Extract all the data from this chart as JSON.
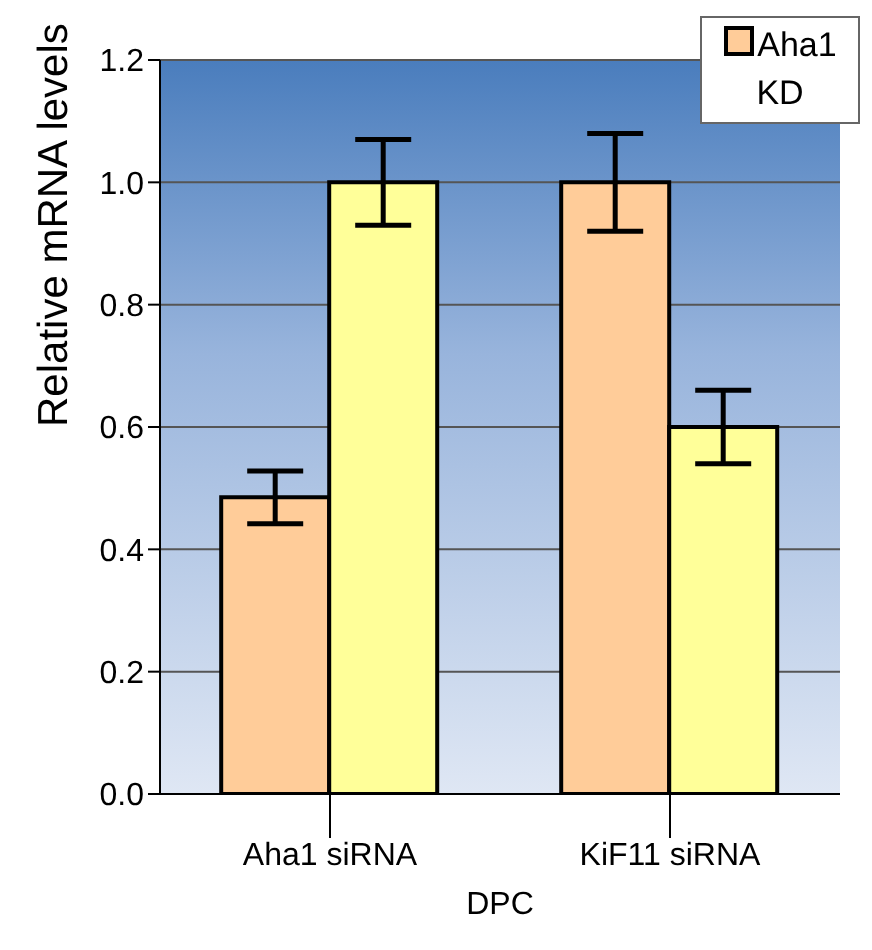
{
  "chart_data": {
    "type": "bar",
    "ylabel": "Relative mRNA levels",
    "xlabel": "DPC",
    "categories": [
      "Aha1 siRNA",
      "KiF11 siRNA"
    ],
    "series": [
      {
        "name": "Aha1 KD",
        "color": "#ffcc99",
        "values": [
          0.485,
          1.0
        ],
        "errors": [
          0.043,
          0.08
        ]
      },
      {
        "color": "#ffff99",
        "values": [
          1.0,
          0.6
        ],
        "errors": [
          0.07,
          0.06
        ]
      }
    ],
    "ylim": [
      0,
      1.2
    ],
    "yticks": [
      {
        "value": 0,
        "label": "0.0"
      },
      {
        "value": 0.2,
        "label": "0.2"
      },
      {
        "value": 0.4,
        "label": "0.4"
      },
      {
        "value": 0.6,
        "label": "0.6"
      },
      {
        "value": 0.8,
        "label": "0.8"
      },
      {
        "value": 1,
        "label": "1.0"
      },
      {
        "value": 1.2,
        "label": "1.2"
      }
    ],
    "grid": "y",
    "legend": "top right"
  }
}
